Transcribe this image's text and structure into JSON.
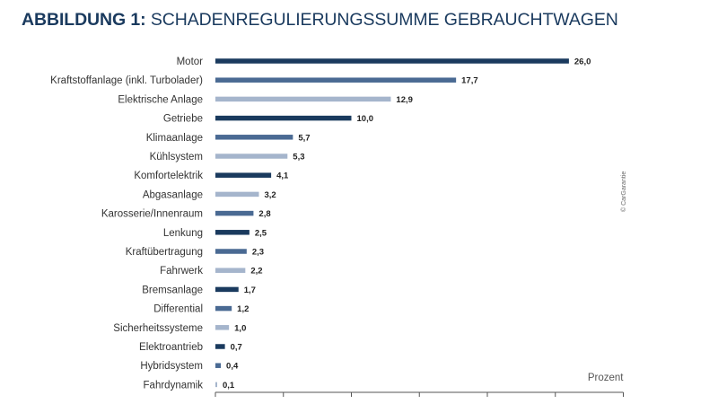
{
  "title_lead": "ABBILDUNG 1:",
  "title_rest": "SCHADENREGULIERUNGSSUMME GEBRAUCHTWAGEN",
  "credit": "© CarGarantie",
  "colors": {
    "dark": "#1a3a5e",
    "mid": "#4a6a93",
    "light": "#a5b5cc",
    "title": "#1a3a5e"
  },
  "chart_data": {
    "type": "bar",
    "orientation": "horizontal",
    "title": "ABBILDUNG 1: SCHADENREGULIERUNGSSUMME GEBRAUCHTWAGEN",
    "xlabel": "Prozent",
    "ylabel": "",
    "xlim": [
      0,
      30
    ],
    "grid": false,
    "categories": [
      "Motor",
      "Kraftstoffanlage (inkl. Turbolader)",
      "Elektrische Anlage",
      "Getriebe",
      "Klimaanlage",
      "Kühlsystem",
      "Komfortelektrik",
      "Abgasanlage",
      "Karosserie/Innenraum",
      "Lenkung",
      "Kraftübertragung",
      "Fahrwerk",
      "Bremsanlage",
      "Differential",
      "Sicherheitssysteme",
      "Elektroantrieb",
      "Hybridsystem",
      "Fahrdynamik"
    ],
    "values": [
      26.0,
      17.7,
      12.9,
      10.0,
      5.7,
      5.3,
      4.1,
      3.2,
      2.8,
      2.5,
      2.3,
      2.2,
      1.7,
      1.2,
      1.0,
      0.7,
      0.4,
      0.1
    ],
    "value_labels": [
      "26,0",
      "17,7",
      "12,9",
      "10,0",
      "5,7",
      "5,3",
      "4,1",
      "3,2",
      "2,8",
      "2,5",
      "2,3",
      "2,2",
      "1,7",
      "1,2",
      "1,0",
      "0,7",
      "0,4",
      "0,1"
    ],
    "bar_color_keys": [
      "dark",
      "mid",
      "light",
      "dark",
      "mid",
      "light",
      "dark",
      "light",
      "mid",
      "dark",
      "mid",
      "light",
      "dark",
      "mid",
      "light",
      "dark",
      "mid",
      "light"
    ]
  }
}
